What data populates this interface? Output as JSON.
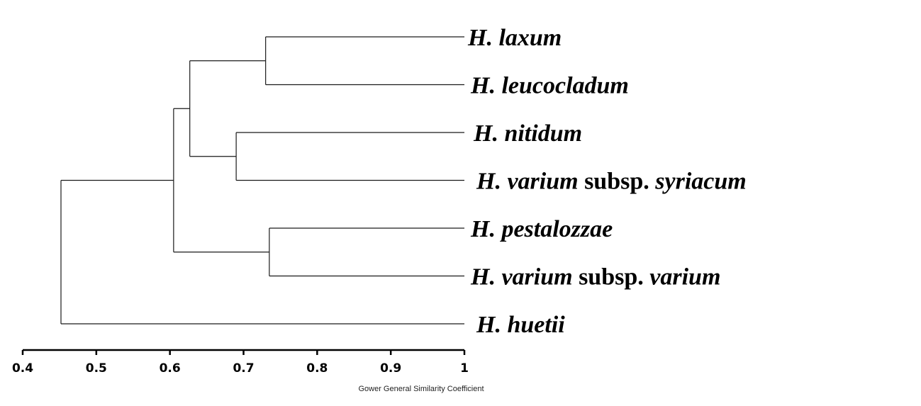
{
  "chart_data": {
    "type": "dendrogram",
    "xlabel": "Gower General Similarity Coefficient",
    "xlim": [
      0.4,
      1.0
    ],
    "ticks": [
      {
        "value": 0.4,
        "label": "0.4"
      },
      {
        "value": 0.5,
        "label": "0.5"
      },
      {
        "value": 0.6,
        "label": "0.6"
      },
      {
        "value": 0.7,
        "label": "0.7"
      },
      {
        "value": 0.8,
        "label": "0.8"
      },
      {
        "value": 0.9,
        "label": "0.9"
      },
      {
        "value": 1.0,
        "label": "1"
      }
    ],
    "leaves": [
      {
        "id": "laxum",
        "parts": [
          {
            "t": "H. laxum",
            "i": true
          }
        ]
      },
      {
        "id": "leucocladum",
        "parts": [
          {
            "t": "H. leucocladum",
            "i": true
          }
        ]
      },
      {
        "id": "nitidum",
        "parts": [
          {
            "t": "H. nitidum",
            "i": true
          }
        ]
      },
      {
        "id": "syriacum",
        "parts": [
          {
            "t": "H. varium ",
            "i": true
          },
          {
            "t": "subsp. ",
            "i": false
          },
          {
            "t": "syriacum",
            "i": true
          }
        ]
      },
      {
        "id": "pestalozzae",
        "parts": [
          {
            "t": "H. pestalozzae",
            "i": true
          }
        ]
      },
      {
        "id": "varium",
        "parts": [
          {
            "t": "H. varium ",
            "i": true
          },
          {
            "t": "subsp. ",
            "i": false
          },
          {
            "t": "varium",
            "i": true
          }
        ]
      },
      {
        "id": "huetii",
        "parts": [
          {
            "t": "H. huetii",
            "i": true
          }
        ]
      }
    ],
    "merges": [
      {
        "id": "c1",
        "children": [
          "laxum",
          "leucocladum"
        ],
        "similarity": 0.73
      },
      {
        "id": "c2",
        "children": [
          "nitidum",
          "syriacum"
        ],
        "similarity": 0.69
      },
      {
        "id": "c3",
        "children": [
          "pestalozzae",
          "varium"
        ],
        "similarity": 0.735
      },
      {
        "id": "c4",
        "children": [
          "c1",
          "c2"
        ],
        "similarity": 0.627
      },
      {
        "id": "c5",
        "children": [
          "c4",
          "c3"
        ],
        "similarity": 0.605
      },
      {
        "id": "c6",
        "children": [
          "c5",
          "huetii"
        ],
        "similarity": 0.452
      }
    ]
  }
}
